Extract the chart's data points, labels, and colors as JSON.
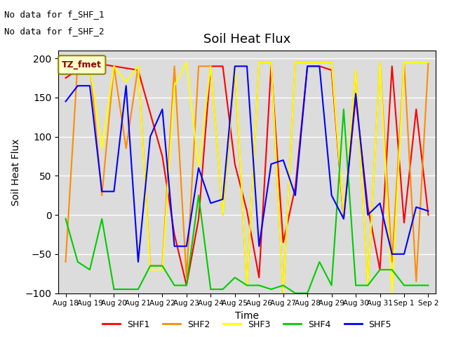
{
  "title": "Soil Heat Flux",
  "ylabel": "Soil Heat Flux",
  "xlabel": "Time",
  "ylim": [
    -100,
    210
  ],
  "yticks": [
    -100,
    -50,
    0,
    50,
    100,
    150,
    200
  ],
  "bg_color": "#dcdcdc",
  "annotations": [
    "No data for f_SHF_1",
    "No data for f_SHF_2"
  ],
  "legend_label": "TZ_fmet",
  "x_labels": [
    "Aug 18",
    "Aug 19",
    "Aug 20",
    "Aug 21",
    "Aug 22",
    "Aug 23",
    "Aug 24",
    "Aug 25",
    "Aug 26",
    "Aug 27",
    "Aug 28",
    "Aug 29",
    "Aug 30",
    "Aug 31",
    "Sep 1",
    "Sep 2"
  ],
  "series": {
    "SHF1": {
      "color": "#ff0000",
      "x": [
        0,
        1,
        2,
        3,
        3.5,
        4,
        4.5,
        5,
        5.5,
        6,
        6.5,
        7,
        7.5,
        8,
        8.5,
        9,
        9.5,
        10,
        10.5,
        11,
        11.5,
        12,
        12.5,
        13,
        13.5,
        14,
        14.5,
        15
      ],
      "y": [
        175,
        195,
        190,
        185,
        130,
        75,
        -25,
        -90,
        -5,
        190,
        190,
        65,
        5,
        -80,
        190,
        -35,
        35,
        190,
        190,
        185,
        -5,
        150,
        10,
        -70,
        190,
        -10,
        135,
        0
      ]
    },
    "SHF2": {
      "color": "#ff8c00",
      "x": [
        0,
        0.5,
        1,
        1.5,
        2,
        2.5,
        3,
        3.5,
        4,
        4.5,
        5,
        5.5,
        6,
        6.5,
        7,
        7.5,
        8,
        8.5,
        9,
        9.5,
        10,
        10.5,
        11,
        11.5,
        12,
        12.5,
        13,
        13.5,
        14,
        14.5,
        15
      ],
      "y": [
        -60,
        195,
        195,
        25,
        190,
        85,
        190,
        -65,
        -65,
        190,
        -80,
        190,
        190,
        0,
        185,
        -90,
        195,
        195,
        -100,
        195,
        195,
        195,
        195,
        -5,
        185,
        -90,
        195,
        -60,
        195,
        -85,
        195
      ]
    },
    "SHF3": {
      "color": "#ffff00",
      "x": [
        0,
        1,
        1.5,
        2,
        2.5,
        3,
        3.5,
        4,
        4.5,
        5,
        5.5,
        6,
        6.5,
        7,
        7.5,
        8,
        8.5,
        9,
        9.5,
        10,
        10.5,
        11,
        11.5,
        12,
        12.5,
        13,
        13.5,
        14,
        14.5,
        15
      ],
      "y": [
        190,
        190,
        85,
        190,
        170,
        190,
        -70,
        -70,
        165,
        195,
        60,
        190,
        0,
        190,
        -90,
        195,
        195,
        -100,
        195,
        195,
        195,
        195,
        0,
        185,
        -90,
        195,
        -100,
        195,
        195,
        195
      ]
    },
    "SHF4": {
      "color": "#00cc00",
      "x": [
        0,
        0.5,
        1,
        1.5,
        2,
        2.5,
        3,
        3.5,
        4,
        4.5,
        5,
        5.5,
        6,
        6.5,
        7,
        7.5,
        8,
        8.5,
        9,
        9.5,
        10,
        10.5,
        11,
        11.5,
        12,
        12.5,
        13,
        13.5,
        14,
        14.5,
        15
      ],
      "y": [
        -5,
        -60,
        -70,
        -5,
        -95,
        -95,
        -95,
        -65,
        -65,
        -90,
        -90,
        25,
        -95,
        -95,
        -80,
        -90,
        -90,
        -95,
        -90,
        -100,
        -100,
        -60,
        -90,
        135,
        -90,
        -90,
        -70,
        -70,
        -90,
        -90,
        -90
      ]
    },
    "SHF5": {
      "color": "#0000ff",
      "x": [
        0,
        0.5,
        1,
        1.5,
        2,
        2.5,
        3,
        3.5,
        4,
        4.5,
        5,
        5.5,
        6,
        6.5,
        7,
        7.5,
        8,
        8.5,
        9,
        9.5,
        10,
        10.5,
        11,
        11.5,
        12,
        12.5,
        13,
        13.5,
        14,
        14.5,
        15
      ],
      "y": [
        145,
        165,
        165,
        30,
        30,
        165,
        -60,
        100,
        135,
        -40,
        -40,
        60,
        15,
        20,
        190,
        190,
        -40,
        65,
        70,
        25,
        190,
        190,
        25,
        -5,
        155,
        0,
        15,
        -50,
        -50,
        10,
        5
      ]
    }
  }
}
